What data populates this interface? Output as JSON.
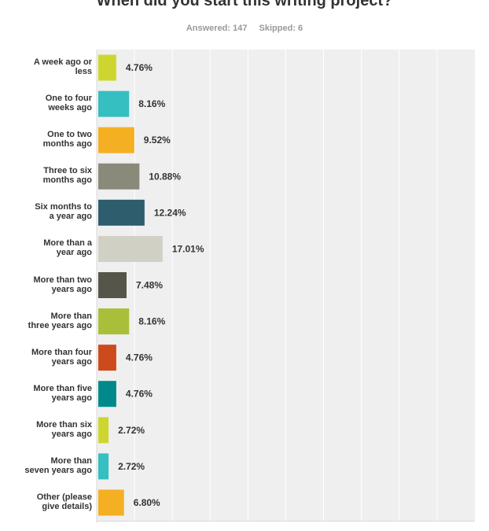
{
  "header": {
    "title": "When did you start this writing project?",
    "answered": "Answered: 147",
    "skipped": "Skipped: 6"
  },
  "chart_data": {
    "type": "bar",
    "orientation": "horizontal",
    "title": "When did you start this writing project?",
    "categories": [
      [
        "A week ago or",
        "less"
      ],
      [
        "One to four",
        "weeks ago"
      ],
      [
        "One to two",
        "months ago"
      ],
      [
        "Three to six",
        "months ago"
      ],
      [
        "Six months to",
        "a year ago"
      ],
      [
        "More than a",
        "year ago"
      ],
      [
        "More than two",
        "years ago"
      ],
      [
        "More than",
        "three years ago"
      ],
      [
        "More than four",
        "years ago"
      ],
      [
        "More than five",
        "years ago"
      ],
      [
        "More than six",
        "years ago"
      ],
      [
        "More than",
        "seven years ago"
      ],
      [
        "Other (please",
        "give details)"
      ]
    ],
    "values": [
      4.76,
      8.16,
      9.52,
      10.88,
      12.24,
      17.01,
      7.48,
      8.16,
      4.76,
      4.76,
      2.72,
      2.72,
      6.8
    ],
    "value_labels": [
      "4.76%",
      "8.16%",
      "9.52%",
      "10.88%",
      "12.24%",
      "17.01%",
      "7.48%",
      "8.16%",
      "4.76%",
      "4.76%",
      "2.72%",
      "2.72%",
      "6.80%"
    ],
    "colors": [
      "#cdd62f",
      "#35bfc0",
      "#f5af22",
      "#8a8a7a",
      "#2e5e6e",
      "#d0d0c4",
      "#55554a",
      "#a9bf3a",
      "#cd4a1c",
      "#00898a",
      "#cdd62f",
      "#35bfc0",
      "#f5af22"
    ],
    "xlim": [
      0,
      100
    ],
    "grid": true,
    "legend": "none"
  }
}
